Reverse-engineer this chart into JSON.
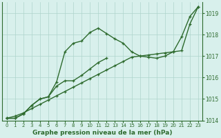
{
  "x": [
    0,
    1,
    2,
    3,
    4,
    5,
    6,
    7,
    8,
    9,
    10,
    11,
    12,
    13,
    14,
    15,
    16,
    17,
    18,
    19,
    20,
    21,
    22,
    23
  ],
  "line_straight": [
    1014.1,
    1014.2,
    1014.35,
    1014.55,
    1014.75,
    1014.95,
    1015.15,
    1015.35,
    1015.55,
    1015.75,
    1015.95,
    1016.15,
    1016.35,
    1016.55,
    1016.75,
    1016.95,
    1017.0,
    1017.05,
    1017.1,
    1017.15,
    1017.2,
    1017.25,
    1018.5,
    1019.3
  ],
  "line_peak": [
    1014.1,
    1014.1,
    1014.3,
    1014.7,
    1015.0,
    1015.1,
    1015.8,
    1017.2,
    1017.6,
    1017.7,
    1018.1,
    1018.3,
    1018.05,
    1017.8,
    1017.6,
    1017.2,
    1017.0,
    1016.95,
    1016.9,
    1017.0,
    1017.2,
    1017.9,
    1018.85,
    1019.3
  ],
  "line_low": [
    1014.1,
    1014.1,
    1014.3,
    1014.7,
    1015.0,
    1015.1,
    1015.6,
    1015.85,
    1015.85,
    1016.1,
    1016.4,
    1016.7,
    1016.9,
    null,
    null,
    null,
    null,
    null,
    null,
    null,
    null,
    null,
    null,
    null
  ],
  "ylim": [
    1014.0,
    1019.5
  ],
  "xlim": [
    -0.5,
    23.5
  ],
  "yticks": [
    1014,
    1015,
    1016,
    1017,
    1018,
    1019
  ],
  "xticks": [
    0,
    1,
    2,
    3,
    4,
    5,
    6,
    7,
    8,
    9,
    10,
    11,
    12,
    13,
    14,
    15,
    16,
    17,
    18,
    19,
    20,
    21,
    22,
    23
  ],
  "xlabel": "Graphe pression niveau de la mer (hPa)",
  "line_color": "#2d6a2d",
  "bg_color": "#d8f0ec",
  "grid_color": "#aed4cc",
  "marker": "+",
  "marker_size": 3.5,
  "linewidth": 1.0
}
